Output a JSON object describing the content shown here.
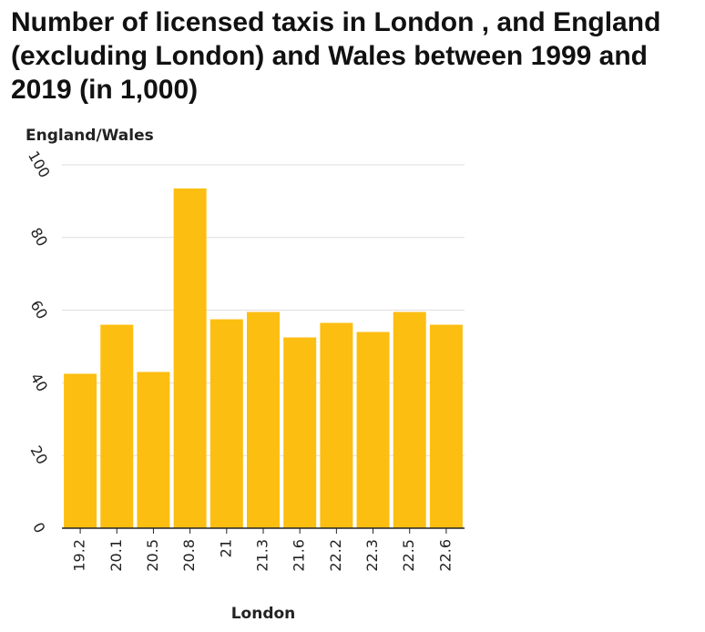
{
  "chart_data": {
    "type": "bar",
    "title": "Number of licensed taxis in London , and England (excluding London) and Wales between 1999 and 2019 (in 1,000)",
    "xlabel": "London",
    "ylabel": "England/Wales",
    "categories": [
      "19.2",
      "20.1",
      "20.5",
      "20.8",
      "21",
      "21.3",
      "21.6",
      "22.2",
      "22.3",
      "22.5",
      "22.6"
    ],
    "series": [
      {
        "values": [
          42.5,
          56,
          43,
          93.5,
          57.5,
          59.5,
          52.5,
          56.5,
          54,
          59.5,
          56
        ]
      }
    ],
    "ylim": [
      0,
      100
    ],
    "yticks": [
      0,
      20,
      40,
      60,
      80,
      100
    ],
    "grid": true,
    "bar_color": "#FDBE12",
    "grid_color": "#dddddd"
  }
}
